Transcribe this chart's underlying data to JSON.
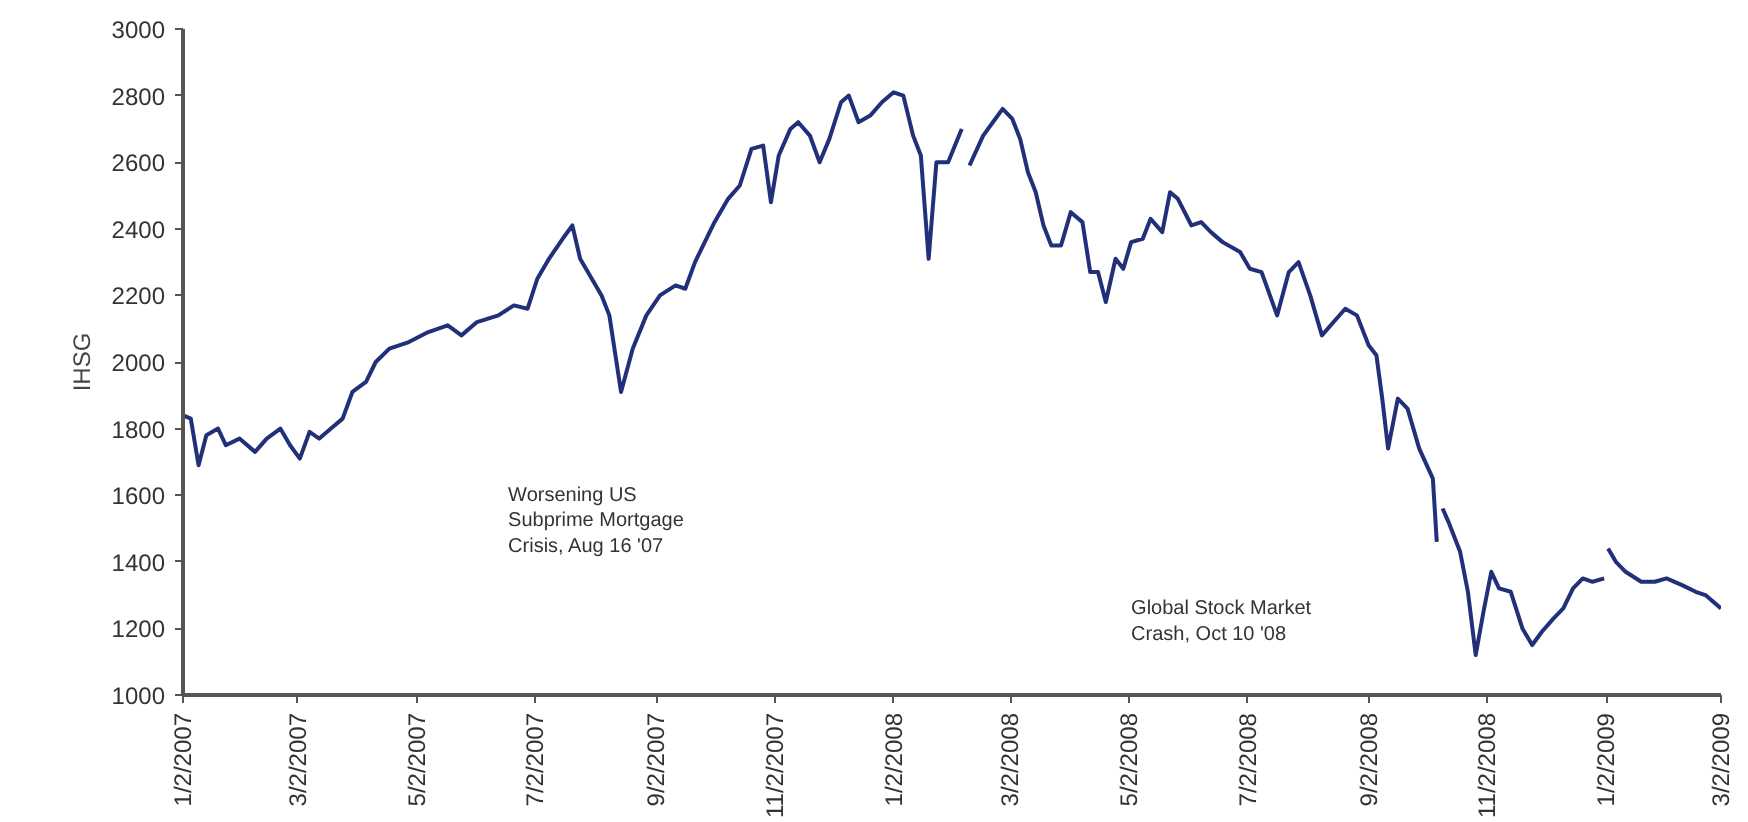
{
  "chart_data": {
    "type": "line",
    "ylabel": "IHSG",
    "annotations": [
      "Worsening US\nSubprime Mortgage\nCrisis, Aug 16 '07",
      "Global Stock Market\nCrash, Oct 10 '08"
    ],
    "xlim": [
      "2007-01-02",
      "2009-03-02"
    ],
    "xticks": [
      {
        "value": "2007-01-02",
        "label": "1/2/2007"
      },
      {
        "value": "2007-03-02",
        "label": "3/2/2007"
      },
      {
        "value": "2007-05-02",
        "label": "5/2/2007"
      },
      {
        "value": "2007-07-02",
        "label": "7/2/2007"
      },
      {
        "value": "2007-09-02",
        "label": "9/2/2007"
      },
      {
        "value": "2007-11-02",
        "label": "11/2/2007"
      },
      {
        "value": "2008-01-02",
        "label": "1/2/2008"
      },
      {
        "value": "2008-03-02",
        "label": "3/2/2008"
      },
      {
        "value": "2008-05-02",
        "label": "5/2/2008"
      },
      {
        "value": "2008-07-02",
        "label": "7/2/2008"
      },
      {
        "value": "2008-09-02",
        "label": "9/2/2008"
      },
      {
        "value": "2008-11-02",
        "label": "11/2/2008"
      },
      {
        "value": "2009-01-02",
        "label": "1/2/2009"
      },
      {
        "value": "2009-03-02",
        "label": "3/2/2009"
      }
    ],
    "ylim": [
      1000,
      3000
    ],
    "yticks": [
      1000,
      1200,
      1400,
      1600,
      1800,
      2000,
      2200,
      2400,
      2600,
      2800,
      3000
    ],
    "grid": false,
    "marker": "none",
    "line_style": "solid",
    "series": [
      {
        "color": "#22307a",
        "x": [
          "2007-01-02",
          "2007-01-06",
          "2007-01-10",
          "2007-01-14",
          "2007-01-20",
          "2007-01-24",
          "2007-01-31",
          "2007-02-08",
          "2007-02-14",
          "2007-02-21",
          "2007-02-26",
          "2007-03-03",
          "2007-03-08",
          "2007-03-13",
          "2007-03-19",
          "2007-03-25",
          "2007-03-30",
          "2007-04-06",
          "2007-04-11",
          "2007-04-18",
          "2007-04-28",
          "2007-05-08",
          "2007-05-18",
          "2007-05-25",
          "2007-06-02",
          "2007-06-13",
          "2007-06-21",
          "2007-06-28",
          "2007-07-03",
          "2007-07-09",
          "2007-07-16",
          "2007-07-21",
          "2007-07-25",
          "2007-07-30",
          "2007-08-05",
          "2007-08-09",
          "2007-08-15",
          "2007-08-21",
          "2007-08-28",
          "2007-09-04",
          "2007-09-12",
          "2007-09-17",
          "2007-09-22",
          "2007-09-27",
          "2007-10-02",
          "2007-10-09",
          "2007-10-15",
          "2007-10-21",
          "2007-10-27",
          "2007-10-31",
          "2007-11-04",
          "2007-11-10",
          "2007-11-14",
          "2007-11-20",
          "2007-11-25",
          "2007-11-30",
          "2007-12-06",
          "2007-12-10",
          "2007-12-15",
          "2007-12-21",
          "2007-12-27",
          "2008-01-02",
          "2008-01-07",
          "2008-01-12",
          "2008-01-16",
          "2008-01-20",
          "2008-01-24",
          "2008-01-30",
          "2008-02-06",
          "2008-02-08",
          "2008-02-10",
          "2008-02-17",
          "2008-02-22",
          "2008-02-27",
          "2008-03-03",
          "2008-03-07",
          "2008-03-11",
          "2008-03-15",
          "2008-03-19",
          "2008-03-23",
          "2008-03-28",
          "2008-04-02",
          "2008-04-08",
          "2008-04-12",
          "2008-04-16",
          "2008-04-20",
          "2008-04-25",
          "2008-04-29",
          "2008-05-03",
          "2008-05-09",
          "2008-05-13",
          "2008-05-19",
          "2008-05-23",
          "2008-05-27",
          "2008-06-03",
          "2008-06-08",
          "2008-06-13",
          "2008-06-19",
          "2008-06-28",
          "2008-07-03",
          "2008-07-09",
          "2008-07-17",
          "2008-07-23",
          "2008-07-28",
          "2008-08-03",
          "2008-08-09",
          "2008-08-15",
          "2008-08-21",
          "2008-08-27",
          "2008-09-02",
          "2008-09-06",
          "2008-09-09",
          "2008-09-12",
          "2008-09-17",
          "2008-09-22",
          "2008-09-28",
          "2008-10-05",
          "2008-10-07",
          "2008-10-08",
          "2008-10-10",
          "2008-10-13",
          "2008-10-19",
          "2008-10-23",
          "2008-10-27",
          "2008-10-31",
          "2008-11-04",
          "2008-11-08",
          "2008-11-14",
          "2008-11-20",
          "2008-11-25",
          "2008-11-30",
          "2008-12-06",
          "2008-12-11",
          "2008-12-16",
          "2008-12-21",
          "2008-12-26",
          "2009-01-01",
          "2009-01-02",
          "2009-01-03",
          "2009-01-07",
          "2009-01-12",
          "2009-01-20",
          "2009-01-27",
          "2009-02-02",
          "2009-02-10",
          "2009-02-17",
          "2009-02-22",
          "2009-03-02"
        ],
        "values": [
          1840,
          1830,
          1690,
          1780,
          1800,
          1750,
          1770,
          1730,
          1770,
          1800,
          1750,
          1710,
          1790,
          1770,
          1800,
          1830,
          1910,
          1940,
          2000,
          2040,
          2060,
          2090,
          2110,
          2080,
          2120,
          2140,
          2170,
          2160,
          2250,
          2310,
          2370,
          2410,
          2310,
          2260,
          2200,
          2140,
          1910,
          2040,
          2140,
          2200,
          2230,
          2220,
          2300,
          2360,
          2420,
          2490,
          2530,
          2640,
          2650,
          2480,
          2620,
          2700,
          2720,
          2680,
          2600,
          2670,
          2780,
          2800,
          2720,
          2740,
          2780,
          2810,
          2800,
          2680,
          2620,
          2310,
          2600,
          2600,
          2700,
          null,
          2590,
          2680,
          2720,
          2760,
          2730,
          2670,
          2570,
          2510,
          2410,
          2350,
          2350,
          2450,
          2420,
          2270,
          2270,
          2180,
          2310,
          2280,
          2360,
          2370,
          2430,
          2390,
          2510,
          2490,
          2410,
          2420,
          2390,
          2360,
          2330,
          2280,
          2270,
          2140,
          2270,
          2300,
          2200,
          2080,
          2120,
          2160,
          2140,
          2050,
          2020,
          1890,
          1740,
          1890,
          1860,
          1740,
          1650,
          1460,
          null,
          1560,
          1520,
          1430,
          1310,
          1120,
          1250,
          1370,
          1320,
          1310,
          1200,
          1150,
          1190,
          1230,
          1260,
          1320,
          1350,
          1340,
          1350,
          null,
          1440,
          1400,
          1370,
          1340,
          1340,
          1350,
          1330,
          1310,
          1300,
          1260
        ]
      }
    ]
  }
}
